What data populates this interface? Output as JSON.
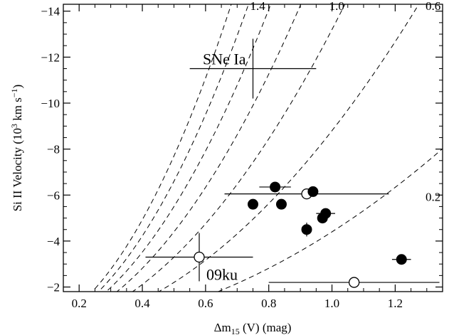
{
  "chart_data": {
    "type": "scatter",
    "xlabel_main": "Δm",
    "xlabel_sub": "15",
    "xlabel_rest": " (V) (mag)",
    "ylabel_main": "Si II Velocity (10",
    "ylabel_sup1": "3",
    "ylabel_mid": " km s",
    "ylabel_sup2": "−1",
    "ylabel_end": ")",
    "xlim": [
      0.15,
      1.35
    ],
    "ylim": [
      -1.8,
      -14.3
    ],
    "xticks": [
      0.2,
      0.4,
      0.6,
      0.8,
      1.0,
      1.2
    ],
    "xtick_labels": [
      "0.2",
      "0.4",
      "0.6",
      "0.8",
      "1.0",
      "1.2"
    ],
    "yticks": [
      -2,
      -4,
      -6,
      -8,
      -10,
      -12,
      -14
    ],
    "ytick_labels": [
      "−2",
      "−4",
      "−6",
      "−8",
      "−10",
      "−12",
      "−14"
    ],
    "filled_points": [
      {
        "x": 0.82,
        "y": -6.35,
        "xerr": 0.05,
        "yerr": 0
      },
      {
        "x": 0.94,
        "y": -6.15,
        "xerr": 0,
        "yerr": 0
      },
      {
        "x": 0.75,
        "y": -5.6,
        "xerr": 0,
        "yerr": 0
      },
      {
        "x": 0.84,
        "y": -5.6,
        "xerr": 0,
        "yerr": 0
      },
      {
        "x": 0.98,
        "y": -5.2,
        "xerr": 0.03,
        "yerr": 0
      },
      {
        "x": 0.97,
        "y": -5.0,
        "xerr": 0,
        "yerr": 0
      },
      {
        "x": 0.92,
        "y": -4.5,
        "xerr": 0,
        "yerr": 0.3
      },
      {
        "x": 1.22,
        "y": -3.2,
        "xerr": 0.03,
        "yerr": 0
      }
    ],
    "open_points": [
      {
        "x": 0.92,
        "y": -6.05,
        "xerr": 0.26,
        "yerr": 0
      },
      {
        "x": 0.58,
        "y": -3.3,
        "xerr": 0.17,
        "yerr": 1.05
      },
      {
        "x": 1.07,
        "y": -2.2,
        "xerr": 0.27,
        "yerr": 0
      }
    ],
    "reference": {
      "x": 0.75,
      "y": -11.5,
      "xerr": 0.2,
      "yerr": 1.3,
      "label": "SNe Ia"
    },
    "annotation_09ku": "09ku",
    "curve_scale": [
      1.4,
      1.2,
      1.0,
      0.8,
      0.6,
      0.4,
      0.2
    ],
    "curve_labels": [
      {
        "text": "1.4",
        "x": 0.765,
        "y": -14.05
      },
      {
        "text": "1.0",
        "x": 1.015,
        "y": -14.05
      },
      {
        "text": "0.6",
        "x": 1.32,
        "y": -14.05
      },
      {
        "text": "0.2",
        "x": 1.32,
        "y": -5.75
      }
    ]
  }
}
